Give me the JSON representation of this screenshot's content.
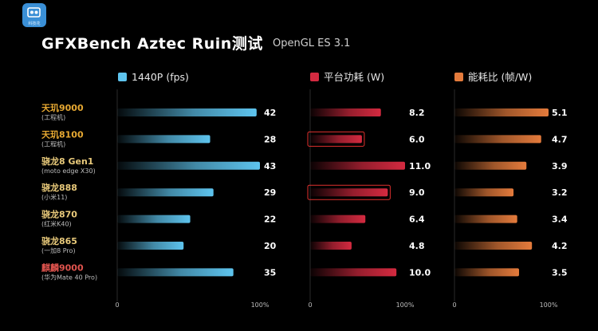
{
  "app_logo": {
    "caption": "科技花"
  },
  "header": {
    "title": "GFXBench Aztec Ruin测试",
    "subtitle": "OpenGL ES 3.1"
  },
  "chart_data": [
    {
      "type": "bar",
      "orientation": "horizontal",
      "legend": "1440P (fps)",
      "color": "#5ec4ee",
      "categories": [
        "天玑9000",
        "天玑8100",
        "骁龙8 Gen1",
        "骁龙888",
        "骁龙870",
        "骁龙865",
        "麒麟9000"
      ],
      "values": [
        42,
        28,
        43,
        29,
        22,
        20,
        35
      ],
      "value_labels": [
        "42",
        "28",
        "43",
        "29",
        "22",
        "20",
        "35"
      ],
      "axis_ticks": [
        "0",
        "100%"
      ],
      "highlighted": []
    },
    {
      "type": "bar",
      "orientation": "horizontal",
      "legend": "平台功耗 (W)",
      "color": "#d42a40",
      "categories": [
        "天玑9000",
        "天玑8100",
        "骁龙8 Gen1",
        "骁龙888",
        "骁龙870",
        "骁龙865",
        "麒麟9000"
      ],
      "values": [
        8.2,
        6.0,
        11.0,
        9.0,
        6.4,
        4.8,
        10.0
      ],
      "value_labels": [
        "8.2",
        "6.0",
        "11.0",
        "9.0",
        "6.4",
        "4.8",
        "10.0"
      ],
      "axis_ticks": [
        "0",
        "100%"
      ],
      "highlighted": [
        1,
        3
      ]
    },
    {
      "type": "bar",
      "orientation": "horizontal",
      "legend": "能耗比 (帧/W)",
      "color": "#e47b3c",
      "categories": [
        "天玑9000",
        "天玑8100",
        "骁龙8 Gen1",
        "骁龙888",
        "骁龙870",
        "骁龙865",
        "麒麟9000"
      ],
      "values": [
        5.1,
        4.7,
        3.9,
        3.2,
        3.4,
        4.2,
        3.5
      ],
      "value_labels": [
        "5.1",
        "4.7",
        "3.9",
        "3.2",
        "3.4",
        "4.2",
        "3.5"
      ],
      "axis_ticks": [
        "0",
        "100%"
      ],
      "highlighted": []
    }
  ],
  "devices": [
    {
      "name": "天玑9000",
      "sub": "(工程机)",
      "name_color": "#e6a832"
    },
    {
      "name": "天玑8100",
      "sub": "(工程机)",
      "name_color": "#e6a832"
    },
    {
      "name": "骁龙8 Gen1",
      "sub": "(moto edge X30)",
      "name_color": "#e8c97a"
    },
    {
      "name": "骁龙888",
      "sub": "(小米11)",
      "name_color": "#e8c97a"
    },
    {
      "name": "骁龙870",
      "sub": "(红米K40)",
      "name_color": "#e8c97a"
    },
    {
      "name": "骁龙865",
      "sub": "(一加8 Pro)",
      "name_color": "#e8c97a"
    },
    {
      "name": "麒麟9000",
      "sub": "(华为Mate 40 Pro)",
      "name_color": "#e0544e"
    }
  ]
}
